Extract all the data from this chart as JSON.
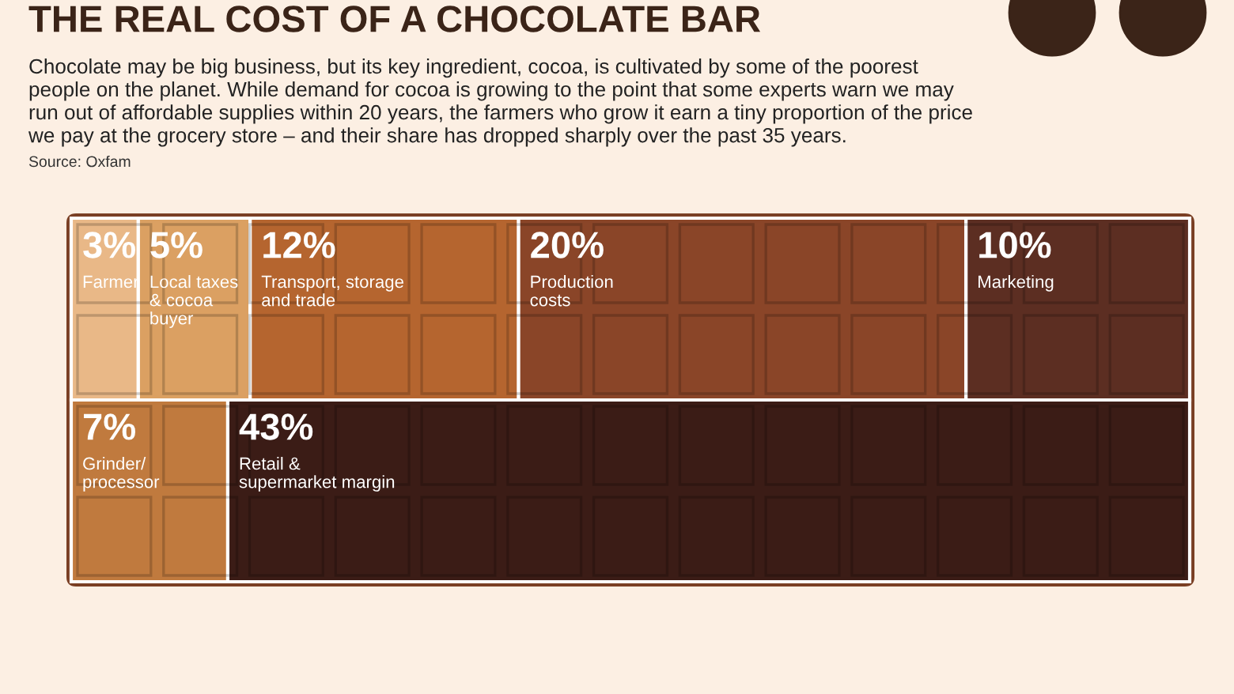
{
  "chart_data": {
    "type": "other",
    "title": "THE REAL COST OF A CHOCOLATE BAR",
    "subtitle": "Chocolate may be big business, but its key ingredient, cocoa, is cultivated by some of the poorest\npeople on the planet. While demand for cocoa is growing to the point that some experts warn we may\nrun out of affordable supplies within 20 years, the farmers who grow it earn a tiny proportion of the price\nwe pay at the grocery store – and their share has dropped sharply over the past 35 years.",
    "annotations": [
      "Source: Oxfam"
    ],
    "categories": [
      "Farmer",
      "Local taxes\n& cocoa\nbuyer",
      "Transport, storage\nand trade",
      "Production\ncosts",
      "Marketing",
      "Grinder/\nprocessor",
      "Retail &\nsupermarket margin"
    ],
    "values": [
      3,
      5,
      12,
      20,
      10,
      7,
      43
    ],
    "value_labels": [
      "3%",
      "5%",
      "12%",
      "20%",
      "10%",
      "7%",
      "43%"
    ],
    "colors": [
      "#e9b887",
      "#dba062",
      "#b5652f",
      "#8a4528",
      "#5c2e22",
      "#c07a3e",
      "#3b1c16"
    ]
  }
}
